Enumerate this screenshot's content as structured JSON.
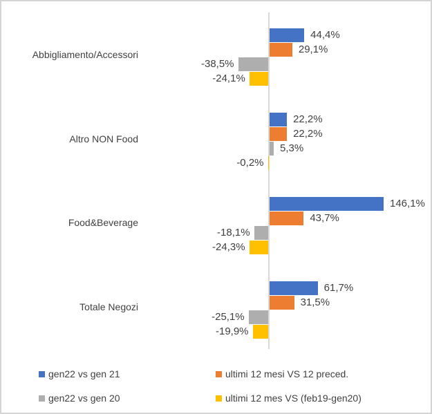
{
  "text_color": "#404040",
  "chart_data": {
    "type": "bar",
    "orientation": "horizontal",
    "title": "",
    "xlabel": "",
    "ylabel": "",
    "categories": [
      "Abbigliamento/Accessori",
      "Altro NON Food",
      "Food&Beverage",
      "Totale Negozi"
    ],
    "series": [
      {
        "name": "gen22 vs gen 21",
        "color": "#4472C4",
        "pattern": false,
        "values": [
          44.4,
          22.2,
          146.1,
          61.7
        ],
        "labels": [
          "44,4%",
          "22,2%",
          "146,1%",
          "61,7%"
        ]
      },
      {
        "name": "ultimi 12 mesi VS 12 preced.",
        "color": "#ED7D31",
        "pattern": false,
        "values": [
          29.1,
          22.2,
          43.7,
          31.5
        ],
        "labels": [
          "29,1%",
          "22,2%",
          "43,7%",
          "31,5%"
        ]
      },
      {
        "name": "gen22 vs gen 20",
        "color": "#A5A5A5",
        "pattern": true,
        "values": [
          -38.5,
          5.3,
          -18.1,
          -25.1
        ],
        "labels": [
          "-38,5%",
          "5,3%",
          "-18,1%",
          "-25,1%"
        ]
      },
      {
        "name": "ultimi 12 mes VS (feb19-gen20)",
        "color": "#FFC000",
        "pattern": false,
        "values": [
          -24.1,
          -0.2,
          -24.3,
          -19.9
        ],
        "labels": [
          "-24,1%",
          "-0,2%",
          "-24,3%",
          "-19,9%"
        ]
      }
    ],
    "value_format": "percent, comma decimal separator",
    "xlim": [
      -40,
      150
    ],
    "gridlines": false,
    "data_labels": true,
    "axis": {
      "baseline_value": 0,
      "line_color": "#d9d9d9"
    },
    "legend": {
      "position": "bottom",
      "columns": 2,
      "rows": 2
    }
  }
}
